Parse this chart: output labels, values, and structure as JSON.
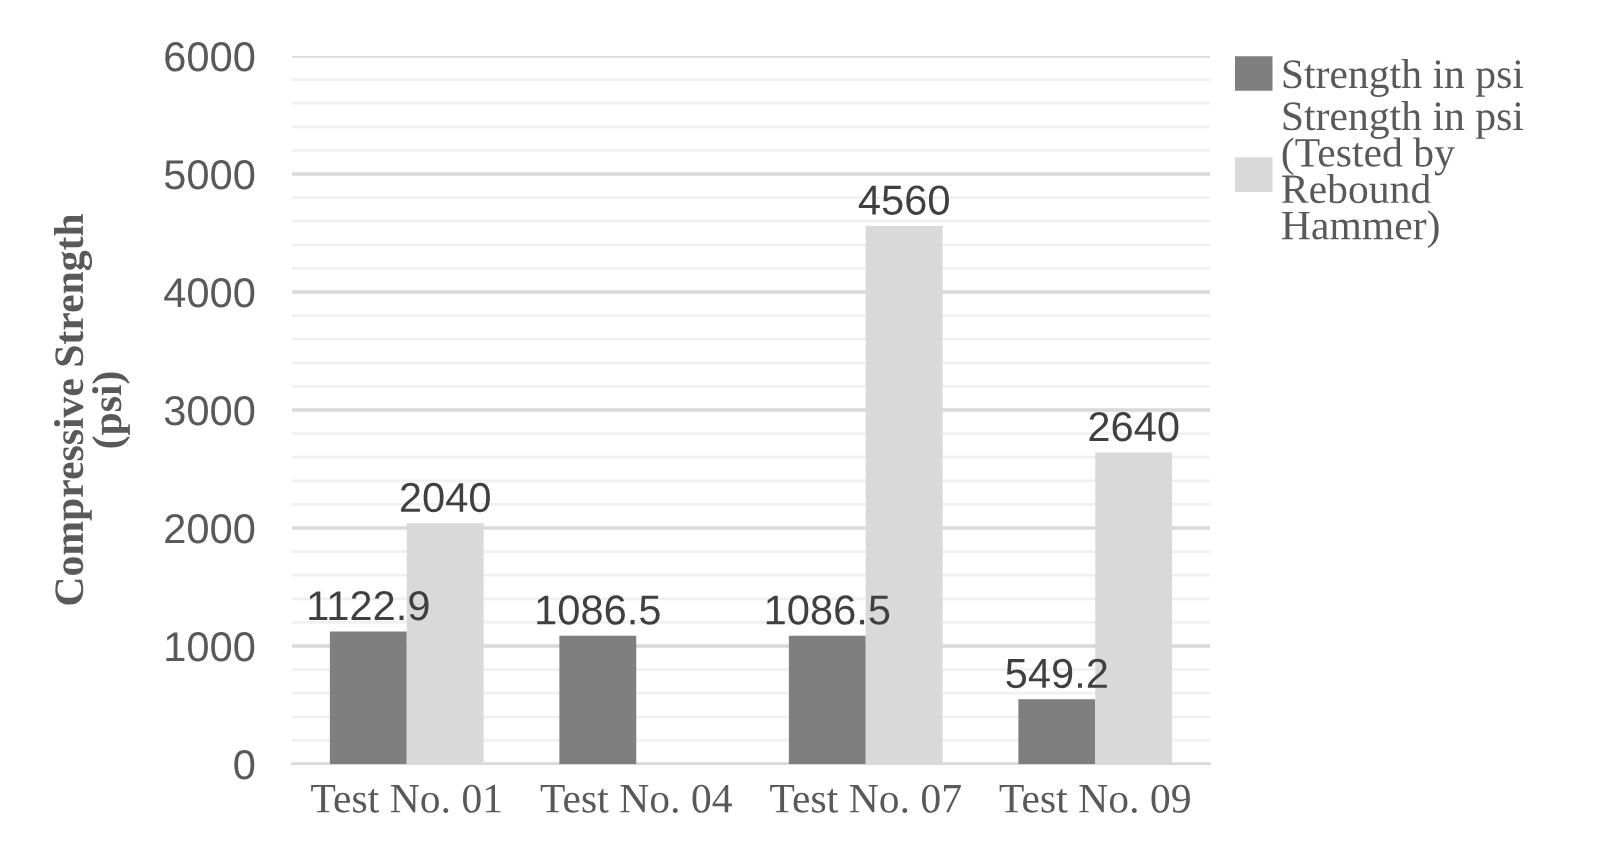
{
  "chart_data": {
    "type": "bar",
    "ylabel": "Compressive Strength\n(psi)",
    "categories": [
      "Test No. 01",
      "Test No. 04",
      "Test No. 07",
      "Test No. 09"
    ],
    "series": [
      {
        "name": "Strength in psi",
        "color": "#7f7f7f",
        "values": [
          1122.9,
          1086.5,
          1086.5,
          549.2
        ]
      },
      {
        "name": "Strength in psi\n(Tested by\nRebound\nHammer)",
        "color": "#d9d9d9",
        "values": [
          2040,
          null,
          4560,
          2640
        ]
      }
    ],
    "ylim": [
      0,
      6000
    ],
    "yticks": [
      0,
      {
        "value": 200,
        "label": null
      },
      {
        "value": 400,
        "label": null
      },
      {
        "value": 600,
        "label": null
      },
      {
        "value": 800,
        "label": null
      },
      1000,
      {
        "value": 1200,
        "label": null
      },
      {
        "value": 1400,
        "label": null
      },
      {
        "value": 1600,
        "label": null
      },
      {
        "value": 1800,
        "label": null
      },
      2000,
      {
        "value": 2200,
        "label": null
      },
      {
        "value": 2400,
        "label": null
      },
      {
        "value": 2600,
        "label": null
      },
      {
        "value": 2800,
        "label": null
      },
      3000,
      {
        "value": 3200,
        "label": null
      },
      {
        "value": 3400,
        "label": null
      },
      {
        "value": 3600,
        "label": null
      },
      {
        "value": 3800,
        "label": null
      },
      4000,
      {
        "value": 4200,
        "label": null
      },
      {
        "value": 4400,
        "label": null
      },
      {
        "value": 4600,
        "label": null
      },
      {
        "value": 4800,
        "label": null
      },
      5000,
      {
        "value": 5200,
        "label": null
      },
      {
        "value": 5400,
        "label": null
      },
      {
        "value": 5600,
        "label": null
      },
      {
        "value": 5800,
        "label": null
      },
      6000
    ],
    "grid": "y",
    "legend": "right",
    "data_labels": true
  }
}
